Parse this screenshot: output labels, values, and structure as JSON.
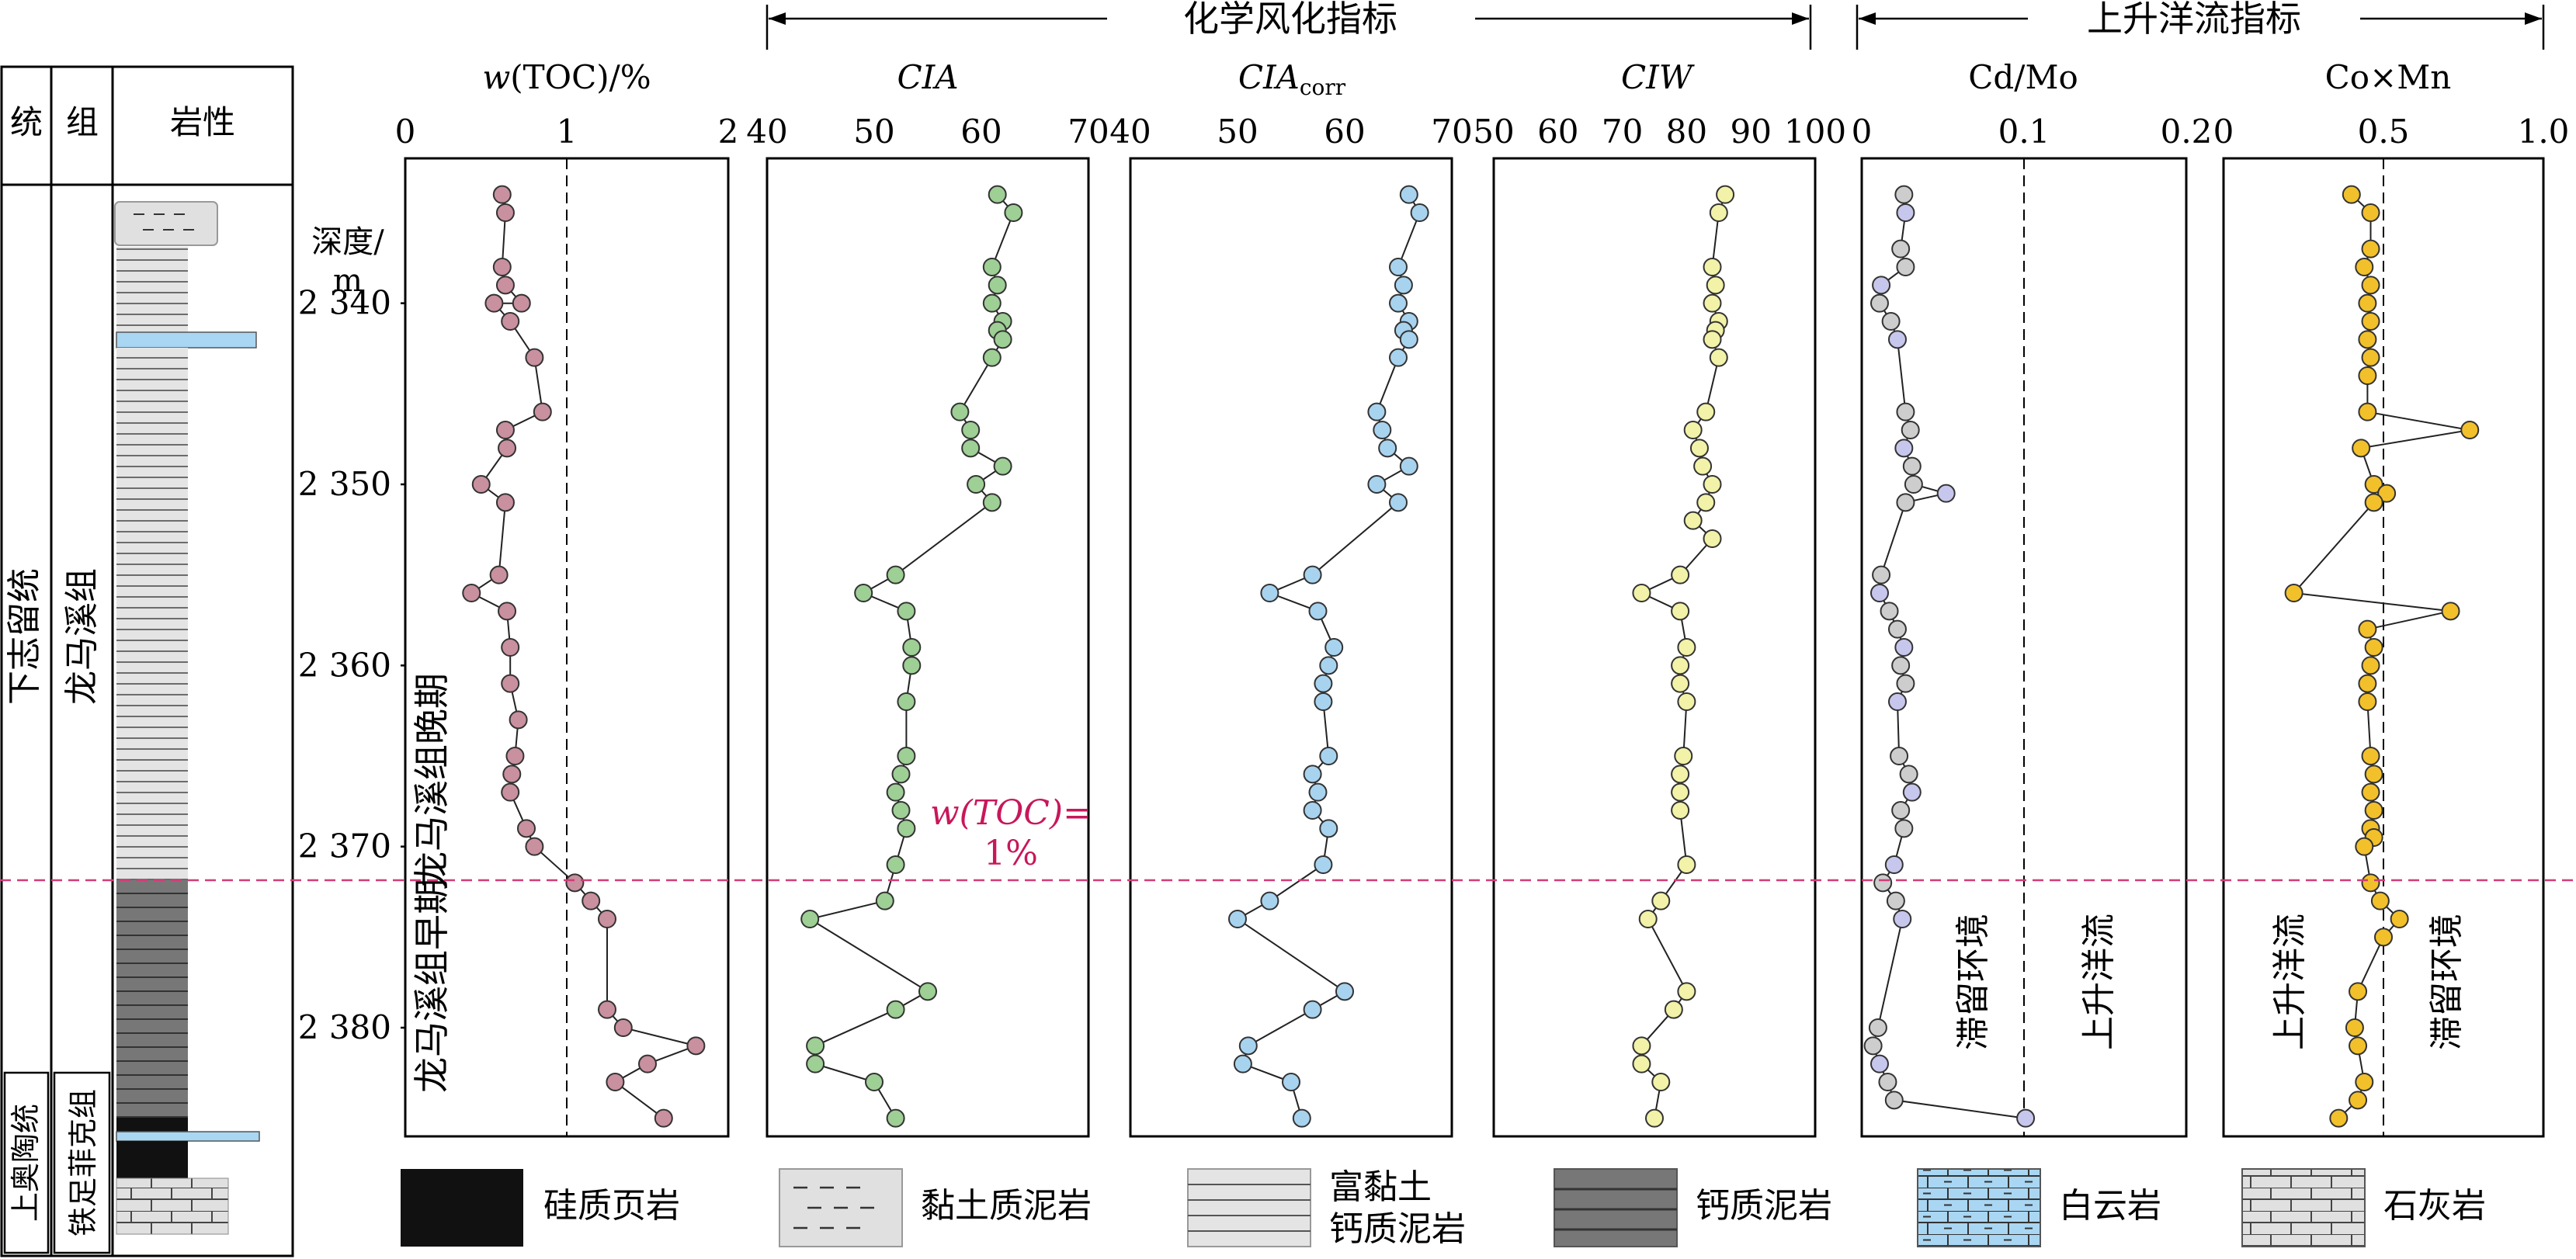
{
  "strat_header": {
    "series": "统",
    "formation": "组",
    "lithology": "岩性"
  },
  "strat_units": {
    "series_upper": "下志留统",
    "series_lower": "上奥陶统",
    "formation_upper": "龙马溪组",
    "formation_lower": "铁足菲克组"
  },
  "depth_title": "深度/",
  "depth_unit": "m",
  "depth_ticks": [
    "2 340",
    "2 350",
    "2 360",
    "2 370",
    "2 380"
  ],
  "depth_tick_values": [
    2340,
    2350,
    2360,
    2370,
    2380
  ],
  "group_headers": {
    "weathering": "化学风化指标",
    "upwelling": "上升洋流指标"
  },
  "periods": {
    "late": "龙马溪组晚期",
    "early": "龙马溪组早期"
  },
  "toc_annotation": {
    "line1": "w(TOC)=",
    "line2": "1%"
  },
  "env_labels": {
    "retention": "滞留环境",
    "upwelling": "上升洋流"
  },
  "legend": [
    {
      "key": "siliceous_shale",
      "label": "硅质页岩"
    },
    {
      "key": "clay_mudstone",
      "label": "黏土质泥岩"
    },
    {
      "key": "clay_rich_calc_line1",
      "label": "富黏土"
    },
    {
      "key": "clay_rich_calc_line2",
      "label": "钙质泥岩"
    },
    {
      "key": "calcareous_mudstone",
      "label": "钙质泥岩"
    },
    {
      "key": "dolomite",
      "label": "白云岩"
    },
    {
      "key": "limestone",
      "label": "石灰岩"
    }
  ],
  "colors": {
    "toc": "#c9909f",
    "cia": "#9ecf95",
    "cia_corr": "#a8d3ef",
    "ciw": "#f2f2a8",
    "cdmo_gray": "#cdcdcd",
    "cdmo_purple": "#c7c6ec",
    "comn": "#f2c02a",
    "marker_line": "#d23c78",
    "annotation": "#c8175a",
    "dolomite": "#a9d6f2",
    "gray_fill": "#e0e0e0"
  },
  "chart_data": [
    {
      "type": "line",
      "title": "w(TOC)/%",
      "xlabel": "w(TOC)/%",
      "ylabel": "深度/m",
      "xticks": [
        "0",
        "1",
        "2"
      ],
      "xlim": [
        0,
        2
      ],
      "ylim": [
        2332,
        2386
      ],
      "reference_x": 1,
      "series": [
        {
          "x": [
            0.6,
            0.62,
            0.6,
            0.62,
            0.72,
            0.55,
            0.65,
            0.8,
            0.85,
            0.62,
            0.63,
            0.47,
            0.62,
            0.58,
            0.41,
            0.63,
            0.65,
            0.65,
            0.7,
            0.68,
            0.66,
            0.65,
            0.75,
            0.8,
            1.05,
            1.15,
            1.25,
            1.25,
            1.35,
            1.8,
            1.5,
            1.3,
            1.6
          ],
          "y": [
            2334,
            2335,
            2338,
            2339,
            2340,
            2340,
            2341,
            2343,
            2346,
            2347,
            2348,
            2350,
            2351,
            2355,
            2356,
            2357,
            2359,
            2361,
            2363,
            2365,
            2366,
            2367,
            2369,
            2370,
            2372,
            2373,
            2374,
            2379,
            2380,
            2381,
            2382,
            2383,
            2385
          ]
        }
      ]
    },
    {
      "type": "line",
      "title": "CIA",
      "xlabel": "CIA",
      "ylabel": "深度/m",
      "xticks": [
        "40",
        "50",
        "60",
        "70"
      ],
      "xlim": [
        40,
        70
      ],
      "ylim": [
        2332,
        2386
      ],
      "series": [
        {
          "x": [
            61.5,
            63,
            61,
            61.5,
            61,
            62,
            61.5,
            62,
            61,
            58,
            59,
            59,
            62,
            59.5,
            61,
            52,
            49,
            53,
            53.5,
            53.5,
            53,
            53,
            52.5,
            52,
            52.5,
            53,
            52,
            51,
            44,
            55,
            52,
            44.5,
            44.5,
            50,
            52
          ],
          "y": [
            2334,
            2335,
            2338,
            2339,
            2340,
            2341,
            2341.5,
            2342,
            2343,
            2346,
            2347,
            2348,
            2349,
            2350,
            2351,
            2355,
            2356,
            2357,
            2359,
            2360,
            2362,
            2365,
            2366,
            2367,
            2368,
            2369,
            2371,
            2373,
            2374,
            2378,
            2379,
            2381,
            2382,
            2383,
            2385
          ]
        }
      ]
    },
    {
      "type": "line",
      "title": "CIAcorr",
      "xlabel": "CIAcorr",
      "ylabel": "深度/m",
      "xticks": [
        "40",
        "50",
        "60",
        "70"
      ],
      "xlim": [
        40,
        70
      ],
      "ylim": [
        2332,
        2386
      ],
      "series": [
        {
          "x": [
            66,
            67,
            65,
            65.5,
            65,
            66,
            65.5,
            66,
            65,
            63,
            63.5,
            64,
            66,
            63,
            65,
            57,
            53,
            57.5,
            59,
            58.5,
            58,
            58,
            58.5,
            57,
            57.5,
            57,
            58.5,
            58,
            53,
            50,
            60,
            57,
            51,
            50.5,
            55,
            56
          ],
          "y": [
            2334,
            2335,
            2338,
            2339,
            2340,
            2341,
            2341.5,
            2342,
            2343,
            2346,
            2347,
            2348,
            2349,
            2350,
            2351,
            2355,
            2356,
            2357,
            2359,
            2360,
            2361,
            2362,
            2365,
            2366,
            2367,
            2368,
            2369,
            2371,
            2373,
            2374,
            2378,
            2379,
            2381,
            2382,
            2383,
            2385
          ]
        }
      ]
    },
    {
      "type": "line",
      "title": "CIW",
      "xlabel": "CIW",
      "ylabel": "深度/m",
      "xticks": [
        "50",
        "60",
        "70",
        "80",
        "90",
        "100"
      ],
      "xlim": [
        50,
        100
      ],
      "ylim": [
        2332,
        2386
      ],
      "series": [
        {
          "x": [
            86,
            85,
            84,
            84.5,
            84,
            85,
            84.5,
            84,
            85,
            83,
            81,
            82,
            82.5,
            84,
            83,
            81,
            84,
            79,
            73,
            79,
            80,
            79,
            79,
            80,
            79.5,
            79,
            79,
            79,
            80,
            76,
            74,
            80,
            78,
            73,
            73,
            76,
            75
          ],
          "y": [
            2334,
            2335,
            2338,
            2339,
            2340,
            2341,
            2341.5,
            2342,
            2343,
            2346,
            2347,
            2348,
            2349,
            2350,
            2351,
            2352,
            2353,
            2355,
            2356,
            2357,
            2359,
            2360,
            2361,
            2362,
            2365,
            2366,
            2367,
            2368,
            2371,
            2373,
            2374,
            2378,
            2379,
            2381,
            2382,
            2383,
            2385
          ]
        }
      ]
    },
    {
      "type": "line",
      "title": "Cd/Mo",
      "xlabel": "Cd/Mo",
      "ylabel": "深度/m",
      "xticks": [
        "0",
        "0.1",
        "0.2"
      ],
      "xlim": [
        0,
        0.2
      ],
      "ylim": [
        2332,
        2386
      ],
      "reference_x": 0.1,
      "labels": [
        "滞留环境",
        "上升洋流"
      ],
      "series": [
        {
          "x": [
            0.026,
            0.027,
            0.024,
            0.027,
            0.012,
            0.011,
            0.018,
            0.022,
            0.027,
            0.03,
            0.026,
            0.031,
            0.032,
            0.052,
            0.027,
            0.012,
            0.011,
            0.017,
            0.022,
            0.026,
            0.024,
            0.027,
            0.022,
            0.023,
            0.029,
            0.031,
            0.024,
            0.026,
            0.02,
            0.013,
            0.021,
            0.025,
            0.01,
            0.007,
            0.011,
            0.016,
            0.02,
            0.101
          ],
          "y": [
            2334,
            2335,
            2337,
            2338,
            2339,
            2340,
            2341,
            2342,
            2346,
            2347,
            2348,
            2349,
            2350,
            2350.5,
            2351,
            2355,
            2356,
            2357,
            2358,
            2359,
            2360,
            2361,
            2362,
            2365,
            2366,
            2367,
            2368,
            2369,
            2371,
            2372,
            2373,
            2374,
            2380,
            2381,
            2382,
            2383,
            2384,
            2385
          ]
        }
      ]
    },
    {
      "type": "line",
      "title": "Co×Mn",
      "xlabel": "Co×Mn",
      "ylabel": "深度/m",
      "xticks": [
        "0",
        "0.5",
        "1.0"
      ],
      "xlim": [
        0,
        1.0
      ],
      "ylim": [
        2332,
        2386
      ],
      "reference_x": 0.5,
      "labels": [
        "上升洋流",
        "滞留环境"
      ],
      "series": [
        {
          "x": [
            0.4,
            0.46,
            0.46,
            0.44,
            0.46,
            0.45,
            0.46,
            0.45,
            0.46,
            0.45,
            0.45,
            0.77,
            0.43,
            0.47,
            0.51,
            0.47,
            0.22,
            0.71,
            0.45,
            0.47,
            0.46,
            0.45,
            0.45,
            0.46,
            0.47,
            0.46,
            0.47,
            0.46,
            0.47,
            0.44,
            0.46,
            0.49,
            0.55,
            0.5,
            0.42,
            0.41,
            0.42,
            0.44,
            0.42,
            0.36
          ],
          "y": [
            2334,
            2335,
            2337,
            2338,
            2339,
            2340,
            2341,
            2342,
            2343,
            2344,
            2346,
            2347,
            2348,
            2350,
            2350.5,
            2351,
            2356,
            2357,
            2358,
            2359,
            2360,
            2361,
            2362,
            2365,
            2366,
            2367,
            2368,
            2369,
            2369.5,
            2370,
            2372,
            2373,
            2374,
            2375,
            2378,
            2380,
            2381,
            2383,
            2384,
            2385
          ]
        }
      ]
    }
  ]
}
